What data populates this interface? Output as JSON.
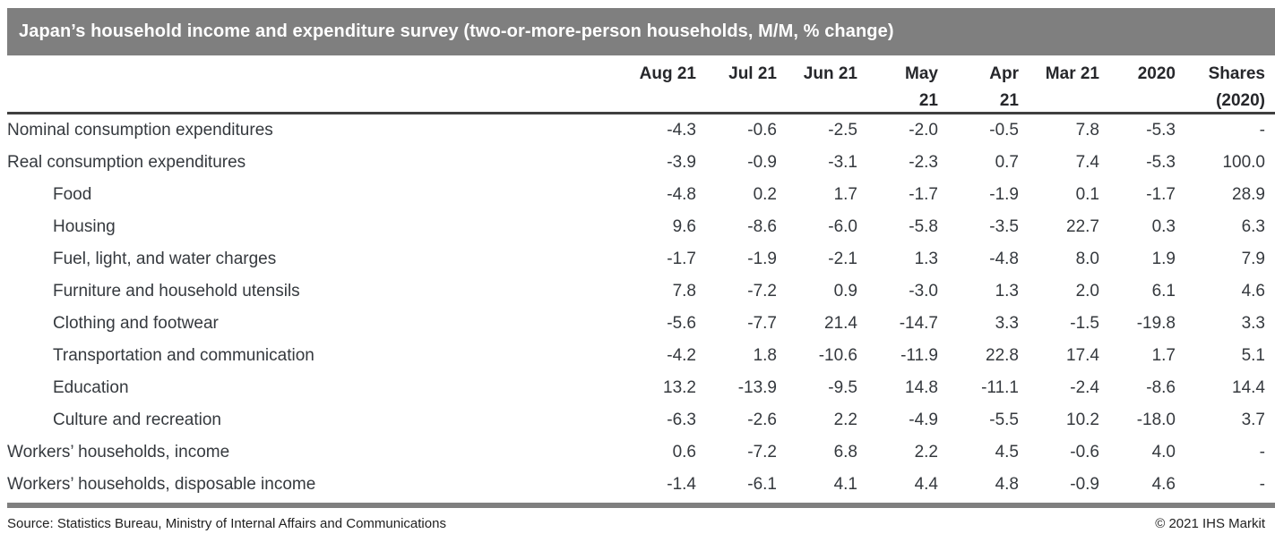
{
  "title_bar": {
    "title": "Japan’s household income and expenditure survey (two-or-more-person households, M/M, % change)"
  },
  "footer": {
    "source": "Source: Statistics Bureau, Ministry of Internal Affairs and Communications",
    "copyright": "© 2021 IHS Markit"
  },
  "colors": {
    "title_bar_bg": "#7f7f7f",
    "title_text": "#ffffff",
    "header_rule": "#3f3f3f",
    "bottom_bar": "#7f7f7f",
    "header_text": "#26272b",
    "body_text": "#35393e"
  },
  "chart_data": {
    "type": "table",
    "title": "Japan’s household income and expenditure survey (two-or-more-person households, M/M, % change)",
    "columns": [
      "Aug 21",
      "Jul 21",
      "Jun 21",
      "May 21",
      "Apr 21",
      "Mar 21",
      "2020",
      "Shares (2020)"
    ],
    "header_lines": [
      [
        "Aug 21"
      ],
      [
        "Jul 21"
      ],
      [
        "Jun 21"
      ],
      [
        "May",
        "21"
      ],
      [
        "Apr",
        "21"
      ],
      [
        "Mar 21"
      ],
      [
        "2020"
      ],
      [
        "Shares",
        "(2020)"
      ]
    ],
    "rows": [
      {
        "label": "Nominal consumption expenditures",
        "indent": 0,
        "values": [
          "-4.3",
          "-0.6",
          "-2.5",
          "-2.0",
          "-0.5",
          "7.8",
          "-5.3",
          "-"
        ]
      },
      {
        "label": "Real consumption expenditures",
        "indent": 0,
        "values": [
          "-3.9",
          "-0.9",
          "-3.1",
          "-2.3",
          "0.7",
          "7.4",
          "-5.3",
          "100.0"
        ]
      },
      {
        "label": "Food",
        "indent": 1,
        "values": [
          "-4.8",
          "0.2",
          "1.7",
          "-1.7",
          "-1.9",
          "0.1",
          "-1.7",
          "28.9"
        ]
      },
      {
        "label": "Housing",
        "indent": 1,
        "values": [
          "9.6",
          "-8.6",
          "-6.0",
          "-5.8",
          "-3.5",
          "22.7",
          "0.3",
          "6.3"
        ]
      },
      {
        "label": "Fuel, light, and water charges",
        "indent": 1,
        "values": [
          "-1.7",
          "-1.9",
          "-2.1",
          "1.3",
          "-4.8",
          "8.0",
          "1.9",
          "7.9"
        ]
      },
      {
        "label": "Furniture and household utensils",
        "indent": 1,
        "values": [
          "7.8",
          "-7.2",
          "0.9",
          "-3.0",
          "1.3",
          "2.0",
          "6.1",
          "4.6"
        ]
      },
      {
        "label": "Clothing and footwear",
        "indent": 1,
        "values": [
          "-5.6",
          "-7.7",
          "21.4",
          "-14.7",
          "3.3",
          "-1.5",
          "-19.8",
          "3.3"
        ]
      },
      {
        "label": "Transportation and communication",
        "indent": 1,
        "values": [
          "-4.2",
          "1.8",
          "-10.6",
          "-11.9",
          "22.8",
          "17.4",
          "1.7",
          "5.1"
        ]
      },
      {
        "label": "Education",
        "indent": 1,
        "values": [
          "13.2",
          "-13.9",
          "-9.5",
          "14.8",
          "-11.1",
          "-2.4",
          "-8.6",
          "14.4"
        ]
      },
      {
        "label": "Culture and recreation",
        "indent": 1,
        "values": [
          "-6.3",
          "-2.6",
          "2.2",
          "-4.9",
          "-5.5",
          "10.2",
          "-18.0",
          "3.7"
        ]
      },
      {
        "label": "Workers’ households, income",
        "indent": 0,
        "values": [
          "0.6",
          "-7.2",
          "6.8",
          "2.2",
          "4.5",
          "-0.6",
          "4.0",
          "-"
        ]
      },
      {
        "label": "Workers’ households, disposable income",
        "indent": 0,
        "values": [
          "-1.4",
          "-6.1",
          "4.1",
          "4.4",
          "4.8",
          "-0.9",
          "4.6",
          "-"
        ]
      }
    ]
  }
}
